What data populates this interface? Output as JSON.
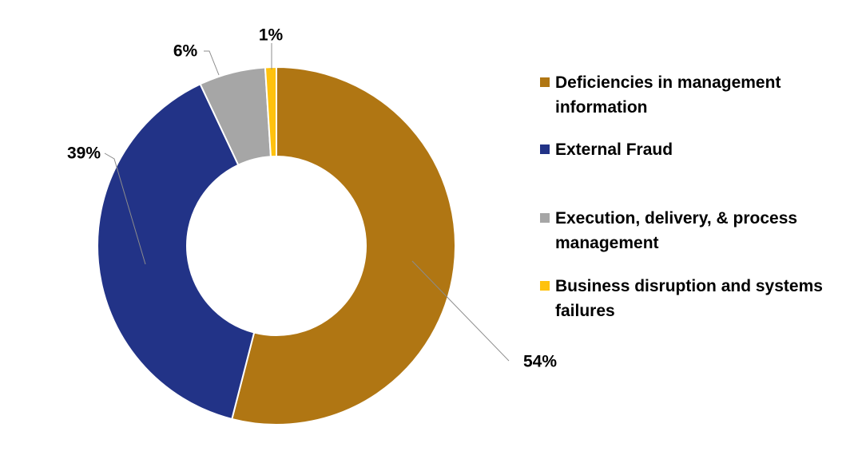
{
  "chart_data": {
    "type": "pie",
    "donut": true,
    "title": "",
    "series": [
      {
        "categories": [
          "Deficiencies in management information",
          "External Fraud",
          "Execution, delivery, & process management",
          "Business disruption and systems failures"
        ],
        "values": [
          54,
          39,
          6,
          1
        ],
        "labels": [
          "54%",
          "39%",
          "6%",
          "1%"
        ],
        "colors": [
          "#B07613",
          "#223387",
          "#A6A6A6",
          "#FFC20E"
        ]
      }
    ],
    "legend_position": "right"
  }
}
